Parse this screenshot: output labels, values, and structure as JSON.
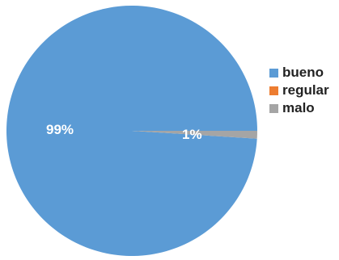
{
  "chart_data": {
    "type": "pie",
    "categories": [
      "bueno",
      "regular",
      "malo"
    ],
    "values": [
      99,
      0,
      1
    ],
    "data_labels": [
      "99%",
      "",
      "1%"
    ],
    "colors": [
      "#5b9bd5",
      "#ed7d31",
      "#a5a5a5"
    ],
    "title": "",
    "legend_position": "right"
  }
}
